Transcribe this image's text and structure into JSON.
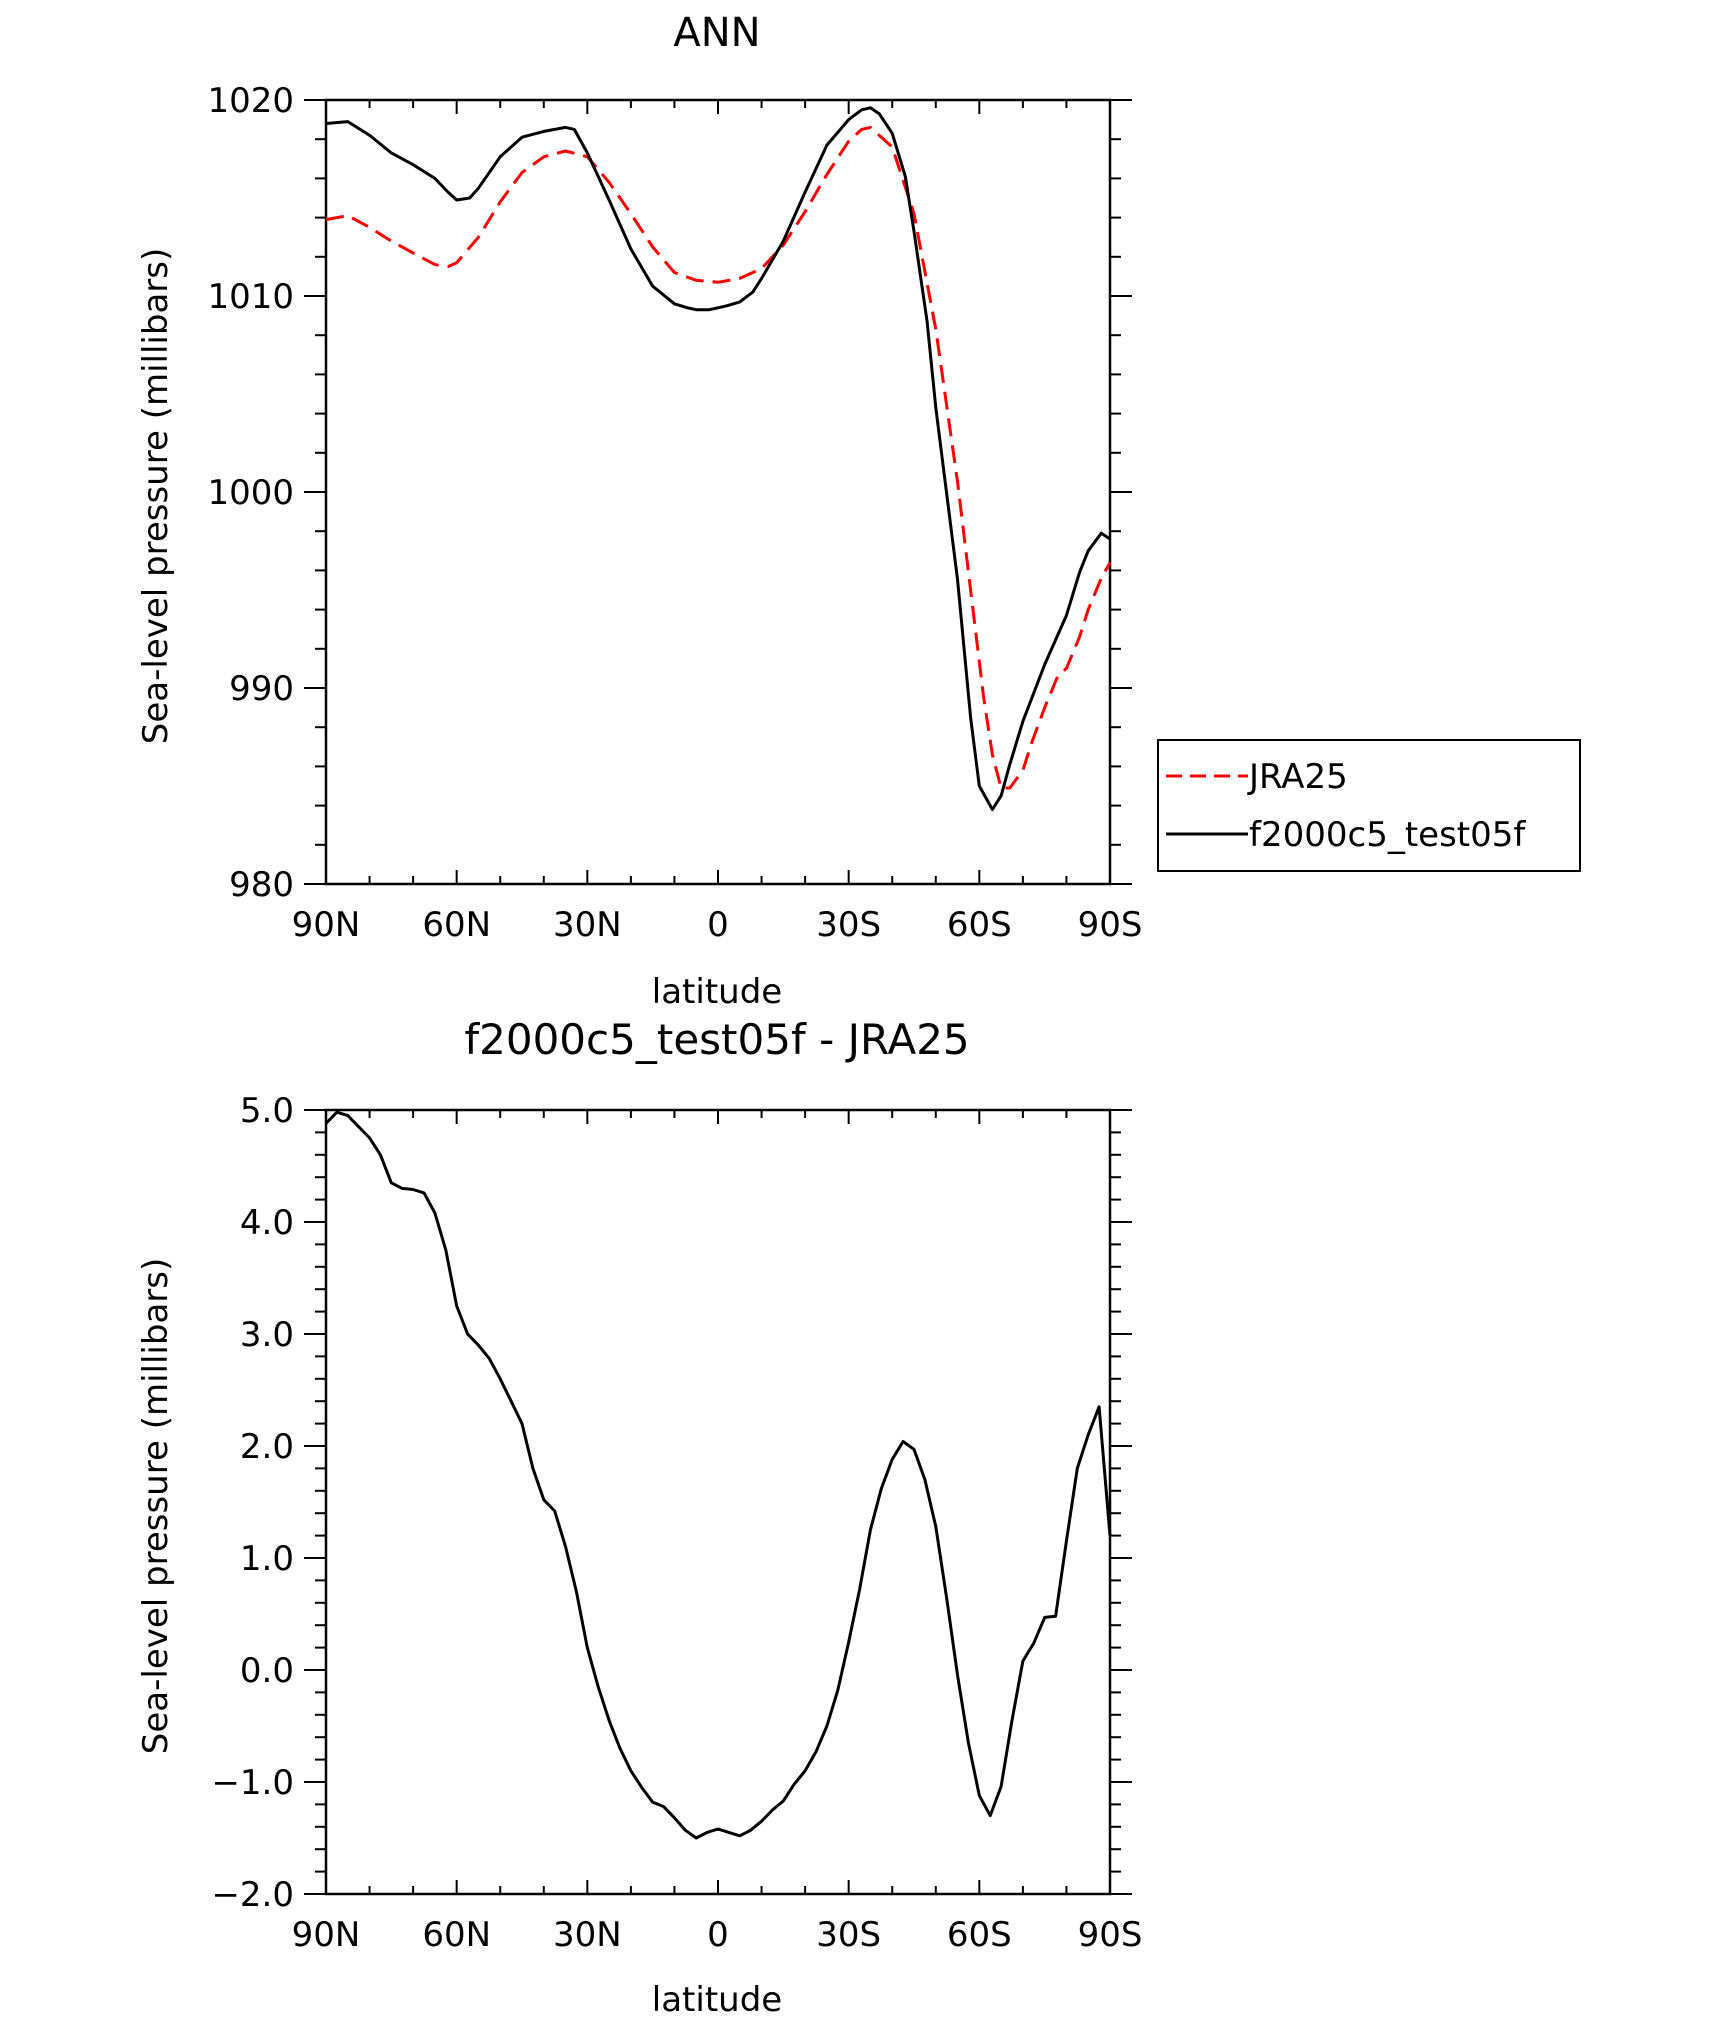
{
  "chart_data": [
    {
      "type": "line",
      "title": "ANN",
      "xlabel": "latitude",
      "ylabel": "Sea-level pressure (millibars)",
      "xlim": [
        90,
        -90
      ],
      "ylim": [
        980,
        1020
      ],
      "xticks": [
        90,
        60,
        30,
        0,
        -30,
        -60,
        -90
      ],
      "xtick_labels": [
        "90N",
        "60N",
        "30N",
        "0",
        "30S",
        "60S",
        "90S"
      ],
      "yticks": [
        980,
        990,
        1000,
        1010,
        1020
      ],
      "ytick_labels": [
        "980",
        "990",
        "1000",
        "1010",
        "1020"
      ],
      "legend_position": "right",
      "series": [
        {
          "name": "JRA25",
          "color": "#ff0000",
          "dash": "dashed",
          "x": [
            90,
            85,
            80,
            75,
            70,
            65,
            62,
            60,
            55,
            50,
            45,
            40,
            35,
            30,
            25,
            20,
            15,
            10,
            5,
            0,
            -5,
            -10,
            -15,
            -20,
            -25,
            -30,
            -33,
            -35,
            -40,
            -45,
            -50,
            -55,
            -58,
            -61,
            -63,
            -65,
            -67,
            -70,
            -72,
            -75,
            -78,
            -80,
            -83,
            -85,
            -88,
            -90
          ],
          "y": [
            1013.9,
            1014.1,
            1013.5,
            1012.8,
            1012.2,
            1011.6,
            1011.5,
            1011.7,
            1013.0,
            1014.8,
            1016.3,
            1017.1,
            1017.4,
            1017.1,
            1015.8,
            1014.2,
            1012.5,
            1011.2,
            1010.8,
            1010.7,
            1010.9,
            1011.4,
            1012.6,
            1014.3,
            1016.2,
            1017.9,
            1018.5,
            1018.6,
            1017.6,
            1014.2,
            1008.3,
            1000.5,
            995.0,
            989.5,
            986.6,
            984.9,
            984.9,
            985.8,
            987.2,
            989.0,
            990.6,
            991.0,
            992.6,
            994.0,
            995.6,
            996.4
          ]
        },
        {
          "name": "f2000c5_test05f",
          "color": "#000000",
          "dash": "solid",
          "x": [
            90,
            85,
            80,
            75,
            70,
            65,
            62,
            60,
            57,
            55,
            50,
            45,
            40,
            35,
            33,
            30,
            25,
            20,
            15,
            10,
            7,
            5,
            2,
            0,
            -2,
            -5,
            -8,
            -10,
            -15,
            -20,
            -25,
            -30,
            -33,
            -35,
            -37,
            -40,
            -43,
            -45,
            -48,
            -50,
            -55,
            -58,
            -60,
            -63,
            -65,
            -67,
            -70,
            -75,
            -80,
            -83,
            -85,
            -88,
            -90
          ],
          "y": [
            1018.8,
            1018.9,
            1018.2,
            1017.3,
            1016.7,
            1016.0,
            1015.3,
            1014.9,
            1015.0,
            1015.5,
            1017.1,
            1018.1,
            1018.4,
            1018.6,
            1018.5,
            1017.3,
            1014.9,
            1012.4,
            1010.5,
            1009.6,
            1009.4,
            1009.3,
            1009.3,
            1009.4,
            1009.5,
            1009.7,
            1010.2,
            1010.9,
            1012.8,
            1015.3,
            1017.7,
            1019.0,
            1019.5,
            1019.6,
            1019.3,
            1018.3,
            1016.1,
            1013.3,
            1008.7,
            1004.3,
            995.5,
            988.5,
            985.0,
            983.8,
            984.5,
            986.1,
            988.3,
            991.2,
            993.7,
            995.9,
            997.0,
            997.9,
            997.6
          ]
        }
      ]
    },
    {
      "type": "line",
      "title": "f2000c5_test05f - JRA25",
      "xlabel": "latitude",
      "ylabel": "Sea-level pressure (millibars)",
      "xlim": [
        90,
        -90
      ],
      "ylim": [
        -2.0,
        5.0
      ],
      "xticks": [
        90,
        60,
        30,
        0,
        -30,
        -60,
        -90
      ],
      "xtick_labels": [
        "90N",
        "60N",
        "30N",
        "0",
        "30S",
        "60S",
        "90S"
      ],
      "yticks": [
        -2,
        -1,
        0,
        1,
        2,
        3,
        4,
        5
      ],
      "ytick_labels": [
        "−2.0",
        "−1.0",
        "0.0",
        "1.0",
        "2.0",
        "3.0",
        "4.0",
        "5.0"
      ],
      "series": [
        {
          "color": "#000000",
          "dash": "solid",
          "x": [
            90,
            87.5,
            85,
            82.5,
            80,
            77.5,
            75,
            72.5,
            70,
            67.5,
            65,
            62.5,
            60,
            57.5,
            55,
            52.5,
            50,
            47.5,
            45,
            42.5,
            40,
            37.5,
            35,
            32.5,
            30,
            27.5,
            25,
            22.5,
            20,
            17.5,
            15,
            12.5,
            10,
            7.5,
            5,
            2.5,
            0,
            -2.5,
            -5,
            -7.5,
            -10,
            -12.5,
            -15,
            -17.5,
            -20,
            -22.5,
            -25,
            -27.5,
            -30,
            -32.5,
            -35,
            -37.5,
            -40,
            -42.5,
            -45,
            -47.5,
            -50,
            -52.5,
            -55,
            -57.5,
            -60,
            -62.5,
            -65,
            -67.5,
            -70,
            -72.5,
            -75,
            -77.5,
            -80,
            -82.5,
            -85,
            -87.5,
            -90
          ],
          "y": [
            4.88,
            4.98,
            4.95,
            4.85,
            4.75,
            4.6,
            4.35,
            4.3,
            4.29,
            4.26,
            4.08,
            3.75,
            3.25,
            3.0,
            2.9,
            2.78,
            2.6,
            2.4,
            2.2,
            1.8,
            1.52,
            1.42,
            1.1,
            0.7,
            0.2,
            -0.15,
            -0.45,
            -0.7,
            -0.9,
            -1.05,
            -1.18,
            -1.22,
            -1.32,
            -1.43,
            -1.5,
            -1.45,
            -1.42,
            -1.45,
            -1.48,
            -1.43,
            -1.35,
            -1.25,
            -1.17,
            -1.02,
            -0.9,
            -0.73,
            -0.5,
            -0.18,
            0.25,
            0.72,
            1.25,
            1.62,
            1.88,
            2.04,
            1.97,
            1.7,
            1.28,
            0.64,
            -0.05,
            -0.65,
            -1.12,
            -1.3,
            -1.04,
            -0.45,
            0.08,
            0.24,
            0.47,
            0.48,
            1.15,
            1.8,
            2.1,
            2.35,
            1.2
          ]
        }
      ]
    }
  ]
}
